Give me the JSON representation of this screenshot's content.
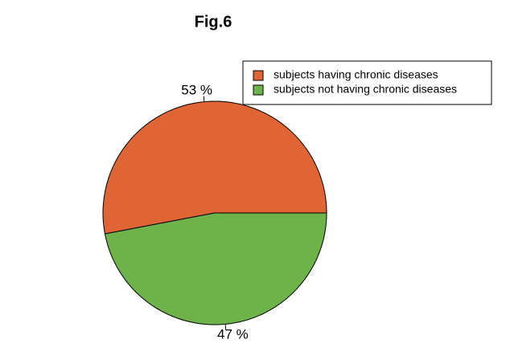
{
  "chart_data": {
    "type": "pie",
    "title": "Fig.6",
    "categories": [
      "subjects having chronic diseases",
      "subjects not having chronic diseases"
    ],
    "values": [
      53,
      47
    ],
    "value_labels": [
      "53 %",
      "47 %"
    ],
    "colors": [
      "#e06535",
      "#6db34a"
    ],
    "legend": "top-right"
  }
}
